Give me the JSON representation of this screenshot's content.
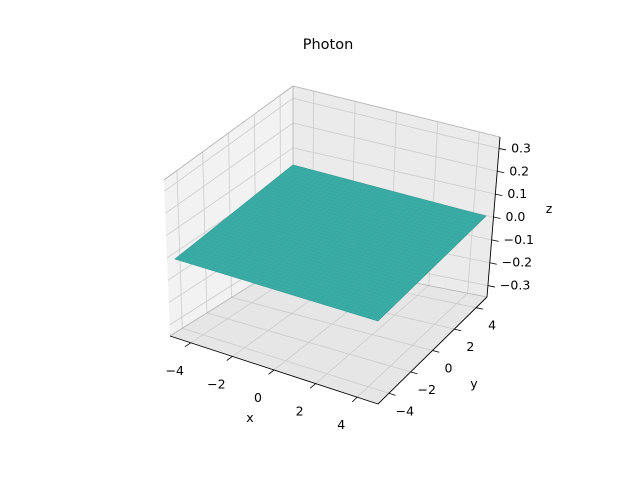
{
  "chart_data": {
    "type": "surface3d",
    "title": "Photon",
    "xlabel": "x",
    "ylabel": "y",
    "zlabel": "z",
    "x_ticks": [
      "−4",
      "−2",
      "0",
      "2",
      "4"
    ],
    "y_ticks": [
      "−4",
      "−2",
      "0",
      "2",
      "4"
    ],
    "z_ticks": [
      "−0.3",
      "−0.2",
      "−0.1",
      "0.0",
      "0.1",
      "0.2",
      "0.3"
    ],
    "xlim": [
      -5,
      5
    ],
    "ylim": [
      -5,
      5
    ],
    "zlim": [
      -0.35,
      0.35
    ],
    "grid": true,
    "surface": {
      "x_range": [
        -5,
        5
      ],
      "y_range": [
        -5,
        5
      ],
      "z_value": 0.0,
      "color": "#3aaca6",
      "edge_color": "#2a8f89"
    },
    "pane_colors": {
      "fill": "#f2f2f2",
      "grid": "#cccccc",
      "edge": "#b0b0b0"
    }
  }
}
